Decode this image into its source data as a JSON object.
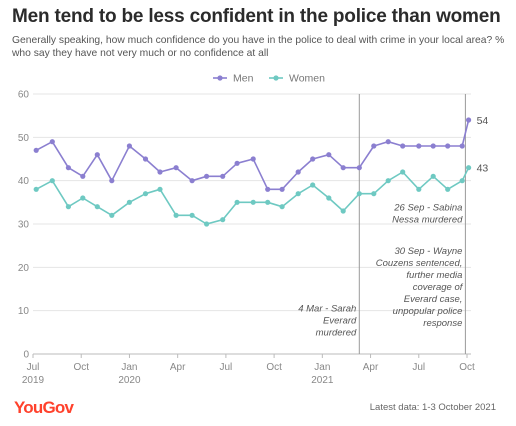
{
  "header": {
    "title": "Men tend to be less confident in the police than women",
    "subtitle": "Generally speaking, how much confidence do you have in the police to deal with crime in your local area? % who say they have not very much or no confidence at all"
  },
  "footer": {
    "logo": "YouGov",
    "source": "Latest data: 1-3 October 2021"
  },
  "chart_data": {
    "type": "line",
    "title": "Men tend to be less confident in the police than women",
    "ylim": [
      0,
      60
    ],
    "yticks": [
      0,
      10,
      20,
      30,
      40,
      50,
      60
    ],
    "xlim": [
      0,
      27
    ],
    "xticks": [
      {
        "x": 0,
        "label": "Jul",
        "sub": "2019"
      },
      {
        "x": 3,
        "label": "Oct",
        "sub": ""
      },
      {
        "x": 6,
        "label": "Jan",
        "sub": "2020"
      },
      {
        "x": 9,
        "label": "Apr",
        "sub": ""
      },
      {
        "x": 12,
        "label": "Jul",
        "sub": ""
      },
      {
        "x": 15,
        "label": "Oct",
        "sub": ""
      },
      {
        "x": 18,
        "label": "Jan",
        "sub": "2021"
      },
      {
        "x": 21,
        "label": "Apr",
        "sub": ""
      },
      {
        "x": 24,
        "label": "Jul",
        "sub": ""
      },
      {
        "x": 27,
        "label": "Oct",
        "sub": ""
      }
    ],
    "legend": "top-center",
    "grid": "horizontal",
    "series": [
      {
        "name": "Men",
        "color": "#8b7fd0",
        "end_label": "54",
        "points": [
          [
            0.2,
            47
          ],
          [
            1.2,
            49
          ],
          [
            2.2,
            43
          ],
          [
            3.1,
            41
          ],
          [
            4.0,
            46
          ],
          [
            4.9,
            40
          ],
          [
            6.0,
            48
          ],
          [
            7.0,
            45
          ],
          [
            7.9,
            42
          ],
          [
            8.9,
            43
          ],
          [
            9.9,
            40
          ],
          [
            10.8,
            41
          ],
          [
            11.8,
            41
          ],
          [
            12.7,
            44
          ],
          [
            13.7,
            45
          ],
          [
            14.6,
            38
          ],
          [
            15.5,
            38
          ],
          [
            16.5,
            42
          ],
          [
            17.4,
            45
          ],
          [
            18.4,
            46
          ],
          [
            19.3,
            43
          ],
          [
            20.3,
            43
          ],
          [
            21.2,
            48
          ],
          [
            22.1,
            49
          ],
          [
            23.0,
            48
          ],
          [
            24.0,
            48
          ],
          [
            24.9,
            48
          ],
          [
            25.8,
            48
          ],
          [
            26.7,
            48
          ],
          [
            27.1,
            54
          ]
        ]
      },
      {
        "name": "Women",
        "color": "#6ec9c2",
        "end_label": "43",
        "points": [
          [
            0.2,
            38
          ],
          [
            1.2,
            40
          ],
          [
            2.2,
            34
          ],
          [
            3.1,
            36
          ],
          [
            4.0,
            34
          ],
          [
            4.9,
            32
          ],
          [
            6.0,
            35
          ],
          [
            7.0,
            37
          ],
          [
            7.9,
            38
          ],
          [
            8.9,
            32
          ],
          [
            9.9,
            32
          ],
          [
            10.8,
            30
          ],
          [
            11.8,
            31
          ],
          [
            12.7,
            35
          ],
          [
            13.7,
            35
          ],
          [
            14.6,
            35
          ],
          [
            15.5,
            34
          ],
          [
            16.5,
            37
          ],
          [
            17.4,
            39
          ],
          [
            18.4,
            36
          ],
          [
            19.3,
            33
          ],
          [
            20.3,
            37
          ],
          [
            21.2,
            37
          ],
          [
            22.1,
            40
          ],
          [
            23.0,
            42
          ],
          [
            24.0,
            38
          ],
          [
            24.9,
            41
          ],
          [
            25.8,
            38
          ],
          [
            26.7,
            40
          ],
          [
            27.1,
            43
          ]
        ]
      }
    ],
    "annotations": [
      {
        "x": 20.3,
        "text": "4 Mar - Sarah Everard murdered",
        "lines": [
          "4 Mar - Sarah",
          "Everard",
          "murdered"
        ],
        "side": "left",
        "y_top": 10.5
      },
      {
        "x": 26.9,
        "text": "26 Sep - Sabina Nessa murdered",
        "lines": [
          "26 Sep - Sabina",
          "Nessa murdered"
        ],
        "side": "left",
        "y_top": 33.8
      },
      {
        "x": 26.9,
        "text": "30 Sep - Wayne Couzens sentenced, further media coverage of Everard case, unpopular police response",
        "lines": [
          "30 Sep - Wayne",
          "Couzens sentenced,",
          "further media",
          "coverage of",
          "Everard case,",
          "unpopular police",
          "response"
        ],
        "side": "left",
        "y_top": 23.8
      }
    ]
  }
}
